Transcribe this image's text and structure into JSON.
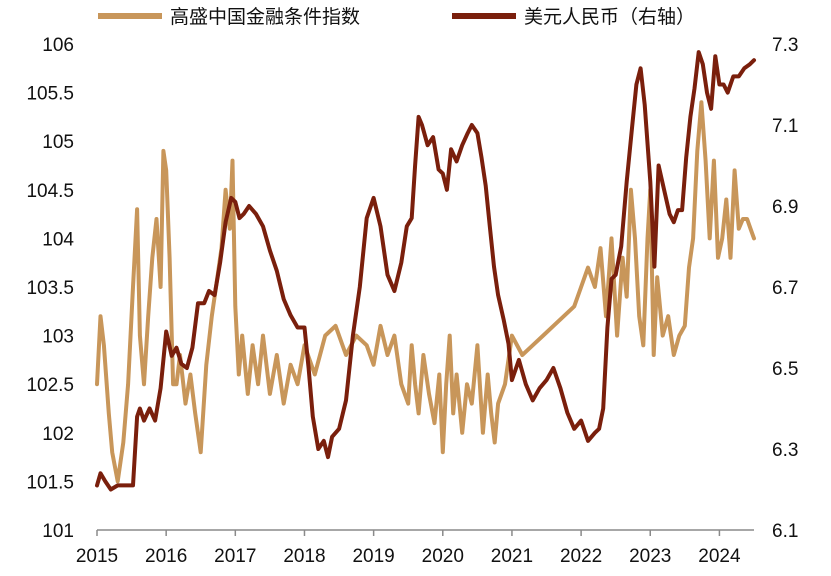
{
  "chart_data": {
    "type": "line",
    "title": "",
    "xlabel": "",
    "ylabel_left": "",
    "ylabel_right": "",
    "x_ticks": [
      "2015",
      "2016",
      "2017",
      "2018",
      "2019",
      "2020",
      "2021",
      "2022",
      "2023",
      "2024"
    ],
    "xlim": [
      2015.0,
      2024.5
    ],
    "y_left": {
      "ylim": [
        101,
        106
      ],
      "ticks": [
        "101",
        "101.5",
        "102",
        "102.5",
        "103",
        "103.5",
        "104",
        "104.5",
        "105",
        "105.5",
        "106"
      ]
    },
    "y_right": {
      "ylim": [
        6.1,
        7.3
      ],
      "ticks": [
        "6.1",
        "6.3",
        "6.5",
        "6.7",
        "6.9",
        "7.1",
        "7.3"
      ]
    },
    "grid": false,
    "legend_position": "top",
    "series": [
      {
        "name": "高盛中国金融条件指数",
        "axis": "left",
        "color": "#c8965a",
        "x": [
          2015.0,
          2015.05,
          2015.1,
          2015.17,
          2015.22,
          2015.3,
          2015.38,
          2015.45,
          2015.52,
          2015.58,
          2015.62,
          2015.68,
          2015.74,
          2015.8,
          2015.86,
          2015.92,
          2015.96,
          2016.0,
          2016.05,
          2016.1,
          2016.15,
          2016.2,
          2016.28,
          2016.35,
          2016.42,
          2016.5,
          2016.58,
          2016.66,
          2016.72,
          2016.8,
          2016.86,
          2016.92,
          2016.96,
          2017.0,
          2017.05,
          2017.1,
          2017.18,
          2017.25,
          2017.33,
          2017.4,
          2017.5,
          2017.6,
          2017.7,
          2017.8,
          2017.9,
          2018.0,
          2018.15,
          2018.3,
          2018.45,
          2018.6,
          2018.75,
          2018.9,
          2019.0,
          2019.1,
          2019.2,
          2019.3,
          2019.4,
          2019.5,
          2019.55,
          2019.6,
          2019.65,
          2019.72,
          2019.8,
          2019.88,
          2019.95,
          2020.0,
          2020.05,
          2020.1,
          2020.15,
          2020.2,
          2020.28,
          2020.35,
          2020.42,
          2020.5,
          2020.58,
          2020.65,
          2020.7,
          2020.75,
          2020.8,
          2020.9,
          2021.0,
          2021.15,
          2021.3,
          2021.45,
          2021.6,
          2021.75,
          2021.9,
          2022.0,
          2022.1,
          2022.2,
          2022.28,
          2022.36,
          2022.44,
          2022.52,
          2022.6,
          2022.66,
          2022.72,
          2022.78,
          2022.84,
          2022.9,
          2022.96,
          2023.0,
          2023.05,
          2023.1,
          2023.18,
          2023.26,
          2023.34,
          2023.42,
          2023.5,
          2023.56,
          2023.62,
          2023.68,
          2023.74,
          2023.8,
          2023.86,
          2023.92,
          2023.98,
          2024.04,
          2024.1,
          2024.16,
          2024.22,
          2024.28,
          2024.34,
          2024.4,
          2024.45,
          2024.5
        ],
        "values": [
          102.5,
          103.2,
          102.9,
          102.2,
          101.8,
          101.5,
          101.9,
          102.5,
          103.5,
          104.3,
          103.0,
          102.5,
          103.2,
          103.8,
          104.2,
          103.5,
          104.9,
          104.7,
          103.8,
          102.5,
          102.5,
          102.8,
          102.3,
          102.6,
          102.2,
          101.8,
          102.7,
          103.2,
          103.5,
          103.9,
          104.5,
          104.1,
          104.8,
          103.3,
          102.6,
          103.0,
          102.4,
          102.9,
          102.5,
          103.0,
          102.4,
          102.8,
          102.3,
          102.7,
          102.5,
          102.9,
          102.6,
          103.0,
          103.1,
          102.8,
          103.0,
          102.9,
          102.7,
          103.1,
          102.8,
          103.0,
          102.5,
          102.3,
          102.9,
          102.5,
          102.2,
          102.8,
          102.4,
          102.1,
          102.6,
          101.8,
          102.5,
          103.0,
          102.2,
          102.6,
          102.0,
          102.5,
          102.3,
          102.9,
          102.0,
          102.6,
          102.2,
          101.9,
          102.3,
          102.5,
          103.0,
          102.8,
          102.9,
          103.0,
          103.1,
          103.2,
          103.3,
          103.5,
          103.7,
          103.5,
          103.9,
          103.2,
          104.0,
          103.0,
          103.8,
          103.4,
          104.5,
          104.0,
          103.2,
          102.9,
          104.0,
          104.5,
          102.8,
          103.6,
          103.0,
          103.2,
          102.8,
          103.0,
          103.1,
          103.7,
          104.0,
          104.9,
          105.4,
          104.8,
          104.0,
          104.8,
          103.8,
          104.0,
          104.4,
          103.8,
          104.7,
          104.1,
          104.2,
          104.2,
          104.1,
          104.0
        ],
        "stroke_width": 4
      },
      {
        "name": "美元人民币（右轴）",
        "axis": "right",
        "color": "#7a1f0c",
        "x": [
          2015.0,
          2015.05,
          2015.12,
          2015.2,
          2015.3,
          2015.42,
          2015.52,
          2015.58,
          2015.62,
          2015.68,
          2015.76,
          2015.84,
          2015.92,
          2016.0,
          2016.08,
          2016.15,
          2016.22,
          2016.3,
          2016.38,
          2016.46,
          2016.55,
          2016.62,
          2016.7,
          2016.78,
          2016.86,
          2016.94,
          2017.0,
          2017.06,
          2017.12,
          2017.2,
          2017.3,
          2017.4,
          2017.5,
          2017.6,
          2017.7,
          2017.8,
          2017.9,
          2018.0,
          2018.06,
          2018.12,
          2018.2,
          2018.28,
          2018.34,
          2018.4,
          2018.5,
          2018.6,
          2018.7,
          2018.8,
          2018.9,
          2019.0,
          2019.1,
          2019.2,
          2019.3,
          2019.4,
          2019.48,
          2019.55,
          2019.6,
          2019.65,
          2019.7,
          2019.78,
          2019.86,
          2019.94,
          2020.0,
          2020.06,
          2020.12,
          2020.2,
          2020.28,
          2020.36,
          2020.42,
          2020.5,
          2020.56,
          2020.62,
          2020.68,
          2020.74,
          2020.8,
          2020.88,
          2020.95,
          2021.0,
          2021.1,
          2021.2,
          2021.3,
          2021.4,
          2021.5,
          2021.6,
          2021.7,
          2021.8,
          2021.9,
          2022.0,
          2022.1,
          2022.2,
          2022.26,
          2022.32,
          2022.38,
          2022.44,
          2022.5,
          2022.58,
          2022.66,
          2022.74,
          2022.8,
          2022.86,
          2022.92,
          2023.0,
          2023.06,
          2023.12,
          2023.2,
          2023.28,
          2023.34,
          2023.4,
          2023.46,
          2023.52,
          2023.58,
          2023.64,
          2023.7,
          2023.76,
          2023.82,
          2023.88,
          2023.94,
          2024.0,
          2024.06,
          2024.12,
          2024.2,
          2024.28,
          2024.36,
          2024.44,
          2024.5
        ],
        "values": [
          6.21,
          6.24,
          6.22,
          6.2,
          6.21,
          6.21,
          6.21,
          6.38,
          6.4,
          6.37,
          6.4,
          6.37,
          6.45,
          6.59,
          6.53,
          6.55,
          6.51,
          6.5,
          6.55,
          6.66,
          6.66,
          6.69,
          6.68,
          6.76,
          6.86,
          6.92,
          6.91,
          6.87,
          6.88,
          6.9,
          6.88,
          6.85,
          6.79,
          6.74,
          6.67,
          6.63,
          6.6,
          6.6,
          6.5,
          6.38,
          6.3,
          6.32,
          6.28,
          6.33,
          6.35,
          6.42,
          6.58,
          6.7,
          6.87,
          6.92,
          6.85,
          6.73,
          6.69,
          6.76,
          6.85,
          6.87,
          7.0,
          7.12,
          7.1,
          7.05,
          7.07,
          6.99,
          6.98,
          6.94,
          7.04,
          7.01,
          7.05,
          7.08,
          7.1,
          7.08,
          7.02,
          6.95,
          6.85,
          6.75,
          6.68,
          6.62,
          6.56,
          6.47,
          6.52,
          6.46,
          6.42,
          6.45,
          6.47,
          6.5,
          6.45,
          6.39,
          6.35,
          6.37,
          6.32,
          6.34,
          6.35,
          6.4,
          6.6,
          6.72,
          6.73,
          6.8,
          6.96,
          7.1,
          7.2,
          7.24,
          7.15,
          6.96,
          6.75,
          7.0,
          6.94,
          6.88,
          6.86,
          6.89,
          6.89,
          7.02,
          7.12,
          7.19,
          7.28,
          7.25,
          7.18,
          7.14,
          7.27,
          7.2,
          7.2,
          7.18,
          7.22,
          7.22,
          7.24,
          7.25,
          7.26
        ],
        "stroke_width": 4
      }
    ]
  }
}
